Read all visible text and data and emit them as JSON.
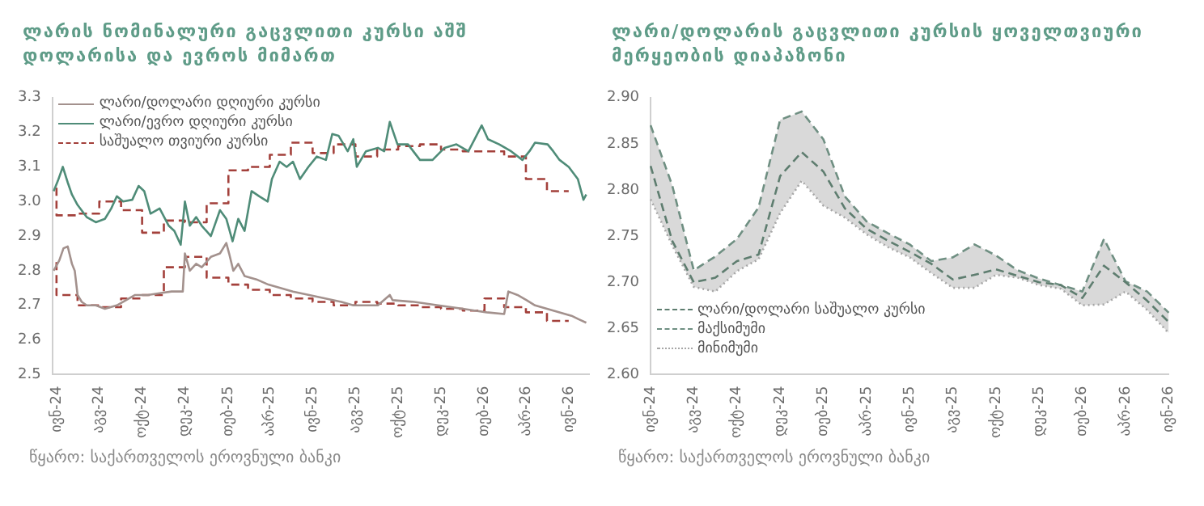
{
  "chart_data": [
    {
      "type": "line",
      "title": "ლარის ნომინალური გაცვლითი კურსი აშშ დოლარისა და ევროს მიმართ",
      "legend": "top left",
      "ylim": [
        2.5,
        3.3
      ],
      "yticks": [
        2.5,
        2.6,
        2.7,
        2.8,
        2.9,
        {
          "value": 3,
          "label": "3.0"
        },
        3.1,
        3.2,
        3.3
      ],
      "xlim": [
        "2024-05-26",
        "2026-06-30"
      ],
      "xticks": [
        {
          "value": "2024-06-01",
          "label": "ივნ-24"
        },
        {
          "value": "2024-08-01",
          "label": "აგვ-24"
        },
        {
          "value": "2024-10-01",
          "label": "ოქტ-24"
        },
        {
          "value": "2024-12-01",
          "label": "დეკ-24"
        },
        {
          "value": "2025-02-01",
          "label": "თებ-25"
        },
        {
          "value": "2025-04-01",
          "label": "აპრ-25"
        },
        {
          "value": "2025-06-01",
          "label": "ივნ-25"
        },
        {
          "value": "2025-08-01",
          "label": "აგვ-25"
        },
        {
          "value": "2025-10-01",
          "label": "ოქტ-25"
        },
        {
          "value": "2025-12-01",
          "label": "დეკ-25"
        },
        {
          "value": "2026-02-01",
          "label": "თებ-26"
        },
        {
          "value": "2026-04-01",
          "label": "აპრ-26"
        },
        {
          "value": "2026-06-01",
          "label": "ივნ-26"
        }
      ],
      "annotations": [
        "წყარო: საქართველოს ეროვნული ბანკი"
      ],
      "series": [
        {
          "name": "ლარი/დოლარი დღიური კურსი",
          "color": "#a3918d",
          "x": [
            "2024-05-28",
            "2024-06-05",
            "2024-06-11",
            "2024-06-17",
            "2024-06-23",
            "2024-06-27",
            "2024-07-01",
            "2024-07-07",
            "2024-07-14",
            "2024-07-27",
            "2024-08-09",
            "2024-08-26",
            "2024-09-08",
            "2024-09-21",
            "2024-10-09",
            "2024-10-26",
            "2024-11-12",
            "2024-11-28",
            "2024-12-01",
            "2024-12-08",
            "2024-12-17",
            "2024-12-25",
            "2025-01-07",
            "2025-01-20",
            "2025-01-29",
            "2025-02-02",
            "2025-02-08",
            "2025-02-15",
            "2025-02-24",
            "2025-03-13",
            "2025-03-30",
            "2025-05-04",
            "2025-06-07",
            "2025-07-12",
            "2025-07-29",
            "2025-09-02",
            "2025-09-19",
            "2025-09-23",
            "2025-10-24",
            "2025-11-27",
            "2026-01-01",
            "2026-01-18",
            "2026-02-04",
            "2026-03-01",
            "2026-03-07",
            "2026-03-20",
            "2026-04-02",
            "2026-04-14",
            "2026-05-10",
            "2026-06-05",
            "2026-06-15",
            "2026-06-26"
          ],
          "values": [
            2.8,
            2.83,
            2.865,
            2.87,
            2.82,
            2.8,
            2.73,
            2.71,
            2.7,
            2.7,
            2.69,
            2.7,
            2.715,
            2.73,
            2.73,
            2.735,
            2.74,
            2.74,
            2.85,
            2.8,
            2.82,
            2.81,
            2.84,
            2.85,
            2.88,
            2.85,
            2.8,
            2.82,
            2.785,
            2.775,
            2.76,
            2.74,
            2.725,
            2.71,
            2.7,
            2.7,
            2.73,
            2.715,
            2.71,
            2.7,
            2.69,
            2.685,
            2.68,
            2.675,
            2.74,
            2.73,
            2.715,
            2.7,
            2.685,
            2.67,
            2.66,
            2.65
          ]
        },
        {
          "name": "ლარი/ევრო დღიური კურსი",
          "color": "#4f8c78",
          "x": [
            "2024-05-28",
            "2024-06-03",
            "2024-06-10",
            "2024-06-17",
            "2024-06-23",
            "2024-07-01",
            "2024-07-14",
            "2024-07-27",
            "2024-08-09",
            "2024-08-18",
            "2024-08-26",
            "2024-09-04",
            "2024-09-17",
            "2024-09-26",
            "2024-10-04",
            "2024-10-13",
            "2024-10-26",
            "2024-11-08",
            "2024-11-16",
            "2024-11-25",
            "2024-12-01",
            "2024-12-08",
            "2024-12-17",
            "2024-12-25",
            "2025-01-07",
            "2025-01-20",
            "2025-01-29",
            "2025-02-07",
            "2025-02-15",
            "2025-02-24",
            "2025-03-06",
            "2025-03-17",
            "2025-03-29",
            "2025-04-04",
            "2025-04-15",
            "2025-04-25",
            "2025-05-04",
            "2025-05-14",
            "2025-05-26",
            "2025-06-07",
            "2025-06-20",
            "2025-06-29",
            "2025-07-08",
            "2025-07-21",
            "2025-07-29",
            "2025-08-03",
            "2025-08-16",
            "2025-09-02",
            "2025-09-11",
            "2025-09-19",
            "2025-09-30",
            "2025-10-15",
            "2025-11-01",
            "2025-11-19",
            "2025-12-06",
            "2025-12-23",
            "2026-01-09",
            "2026-01-18",
            "2026-01-28",
            "2026-02-06",
            "2026-02-22",
            "2026-03-11",
            "2026-03-27",
            "2026-04-06",
            "2026-04-14",
            "2026-05-02",
            "2026-05-10",
            "2026-05-19",
            "2026-06-01",
            "2026-06-14",
            "2026-06-22",
            "2026-06-26"
          ],
          "values": [
            3.03,
            3.06,
            3.1,
            3.055,
            3.02,
            2.99,
            2.955,
            2.94,
            2.95,
            2.98,
            3.015,
            3.0,
            3.005,
            3.045,
            3.03,
            2.965,
            2.98,
            2.93,
            2.915,
            2.875,
            3.0,
            2.93,
            2.955,
            2.93,
            2.9,
            2.975,
            2.95,
            2.885,
            2.95,
            2.915,
            3.03,
            3.015,
            3.0,
            3.065,
            3.115,
            3.1,
            3.115,
            3.065,
            3.1,
            3.13,
            3.12,
            3.195,
            3.19,
            3.145,
            3.18,
            3.1,
            3.145,
            3.155,
            3.145,
            3.23,
            3.165,
            3.165,
            3.12,
            3.12,
            3.155,
            3.165,
            3.145,
            3.18,
            3.22,
            3.18,
            3.165,
            3.145,
            3.12,
            3.145,
            3.17,
            3.165,
            3.145,
            3.12,
            3.1,
            3.065,
            3.005,
            3.02
          ]
        },
        {
          "name": "საშუალო თვიური კურსი",
          "type": "step",
          "line_style": "dashed",
          "color": "#a3403b",
          "x": [
            "2024-06",
            "2024-07",
            "2024-08",
            "2024-09",
            "2024-10",
            "2024-11",
            "2024-12",
            "2025-01",
            "2025-02",
            "2025-03",
            "2025-04",
            "2025-05",
            "2025-06",
            "2025-07",
            "2025-08",
            "2025-09",
            "2025-10",
            "2025-11",
            "2025-12",
            "2026-01",
            "2026-02",
            "2026-03",
            "2026-04",
            "2026-05",
            "2026-06"
          ],
          "values": [
            2.825,
            2.73,
            2.7,
            2.695,
            2.72,
            2.73,
            2.81,
            2.84,
            2.78,
            2.76,
            2.745,
            2.73,
            2.72,
            2.71,
            2.7,
            2.71,
            2.705,
            2.7,
            2.695,
            2.69,
            2.685,
            2.72,
            2.695,
            2.68,
            2.655
          ]
        },
        {
          "type": "step",
          "line_style": "dashed",
          "color": "#a3403b",
          "x": [
            "2024-06",
            "2024-07",
            "2024-08",
            "2024-09",
            "2024-10",
            "2024-11",
            "2024-12",
            "2025-01",
            "2025-02",
            "2025-03",
            "2025-04",
            "2025-05",
            "2025-06",
            "2025-07",
            "2025-08",
            "2025-09",
            "2025-10",
            "2025-11",
            "2025-12",
            "2026-01",
            "2026-02",
            "2026-03",
            "2026-04",
            "2026-05",
            "2026-06"
          ],
          "values": [
            3.04,
            2.96,
            2.965,
            3.0,
            2.975,
            2.91,
            2.945,
            2.94,
            2.995,
            3.09,
            3.1,
            3.135,
            3.17,
            3.14,
            3.165,
            3.13,
            3.15,
            3.16,
            3.165,
            3.15,
            3.145,
            3.145,
            3.13,
            3.065,
            3.03
          ]
        }
      ]
    },
    {
      "type": "line",
      "title": "ლარი/დოლარის გაცვლითი კურსის ყოველთვიური მერყეობის დიაპაზონი",
      "legend": "bottom left",
      "ylim": [
        2.6,
        2.9
      ],
      "yticks": [
        {
          "value": 2.6,
          "label": "2.60"
        },
        {
          "value": 2.65,
          "label": "2.65"
        },
        {
          "value": 2.7,
          "label": "2.70"
        },
        {
          "value": 2.75,
          "label": "2.75"
        },
        {
          "value": 2.8,
          "label": "2.80"
        },
        {
          "value": 2.85,
          "label": "2.85"
        },
        {
          "value": 2.9,
          "label": "2.90"
        }
      ],
      "categories": [
        "ივნ-24",
        null,
        "აგვ-24",
        null,
        "ოქტ-24",
        null,
        "დეკ-24",
        null,
        "თებ-25",
        null,
        "აპრ-25",
        null,
        "ივნ-25",
        null,
        "აგვ-25",
        null,
        "ოქტ-25",
        null,
        "დეკ-25",
        null,
        "თებ-26",
        null,
        "აპრ-26",
        null,
        "ივნ-26"
      ],
      "annotations": [
        "წყარო: საქართველოს ეროვნული ბანკი"
      ],
      "series": [
        {
          "name": "ლარი/დოლარი საშუალო კურსი",
          "line_style": "dashed",
          "color": "#5e7d6f",
          "values": [
            2.826,
            2.745,
            2.7,
            2.705,
            2.723,
            2.73,
            2.815,
            2.841,
            2.82,
            2.78,
            2.758,
            2.745,
            2.733,
            2.72,
            2.703,
            2.708,
            2.714,
            2.707,
            2.7,
            2.697,
            2.683,
            2.718,
            2.7,
            2.68,
            2.657
          ]
        },
        {
          "name": "მაქსიმუმი",
          "type": "area",
          "line_style": "dashed",
          "color": "#6f8f82",
          "values": [
            2.87,
            2.805,
            2.713,
            2.728,
            2.747,
            2.781,
            2.876,
            2.885,
            2.855,
            2.793,
            2.766,
            2.753,
            2.741,
            2.723,
            2.727,
            2.741,
            2.729,
            2.713,
            2.704,
            2.697,
            2.69,
            2.747,
            2.701,
            2.69,
            2.667
          ]
        },
        {
          "name": "მინიმუმი",
          "line_style": "dotted",
          "color": "#a6a6a6",
          "values": [
            2.79,
            2.74,
            2.695,
            2.69,
            2.712,
            2.725,
            2.775,
            2.81,
            2.783,
            2.77,
            2.752,
            2.738,
            2.727,
            2.71,
            2.694,
            2.694,
            2.708,
            2.705,
            2.697,
            2.693,
            2.675,
            2.676,
            2.69,
            2.67,
            2.645
          ]
        }
      ]
    }
  ]
}
